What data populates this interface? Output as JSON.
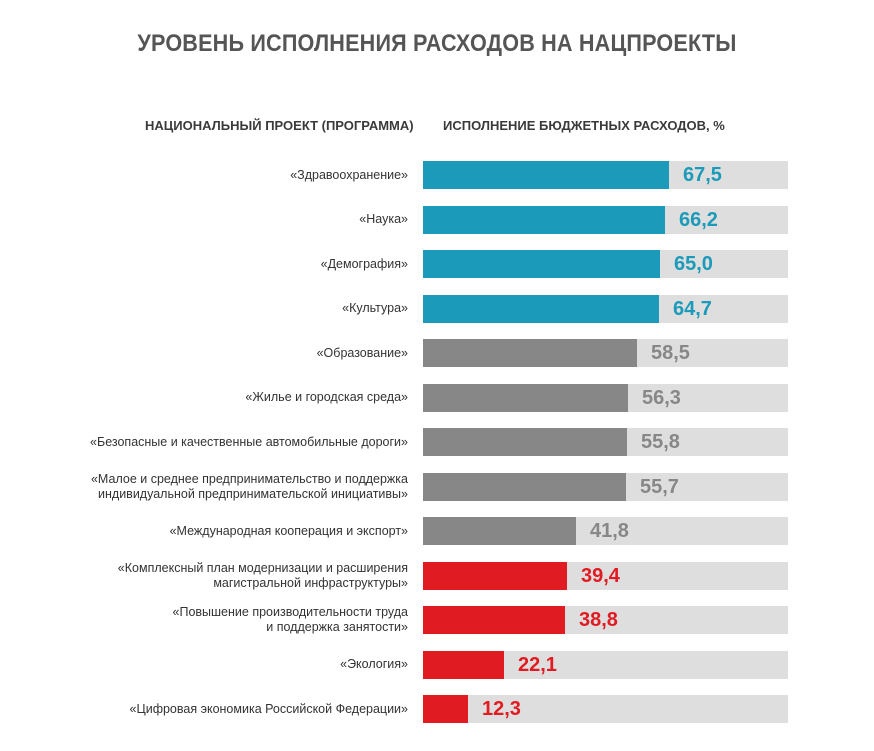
{
  "chart_data": {
    "type": "bar",
    "orientation": "horizontal",
    "title": "УРОВЕНЬ ИСПОЛНЕНИЯ РАСХОДОВ НА НАЦПРОЕКТЫ",
    "category_header": "НАЦИОНАЛЬНЫЙ ПРОЕКТ (ПРОГРАММА)",
    "value_header": "ИСПОЛНЕНИЕ БЮДЖЕТНЫХ РАСХОДОВ, %",
    "xlim": [
      0,
      100
    ],
    "grid": false,
    "legend": "none",
    "colors": {
      "blue": "#1c9ab9",
      "grey": "#878787",
      "red": "#e11b22",
      "track": "#dedede"
    },
    "categories": [
      "«Здравоохранение»",
      "«Наука»",
      "«Демография»",
      "«Культура»",
      "«Образование»",
      "«Жилье и городская среда»",
      "«Безопасные и качественные автомобильные дороги»",
      "«Малое и среднее предпринимательство и поддержка\nиндивидуальной предпринимательской инициативы»",
      "«Международная кооперация и экспорт»",
      "«Комплексный план модернизации и расширения\nмагистральной инфраструктуры»",
      "«Повышение производительности труда\nи поддержка занятости»",
      "«Экология»",
      "«Цифровая экономика Российской Федерации»"
    ],
    "values": [
      67.5,
      66.2,
      65.0,
      64.7,
      58.5,
      56.3,
      55.8,
      55.7,
      41.8,
      39.4,
      38.8,
      22.1,
      12.3
    ],
    "value_labels": [
      "67,5",
      "66,2",
      "65,0",
      "64,7",
      "58,5",
      "56,3",
      "55,8",
      "55,7",
      "41,8",
      "39,4",
      "38,8",
      "22,1",
      "12,3"
    ],
    "bar_colors": [
      "blue",
      "blue",
      "blue",
      "blue",
      "grey",
      "grey",
      "grey",
      "grey",
      "grey",
      "red",
      "red",
      "red",
      "red"
    ]
  }
}
